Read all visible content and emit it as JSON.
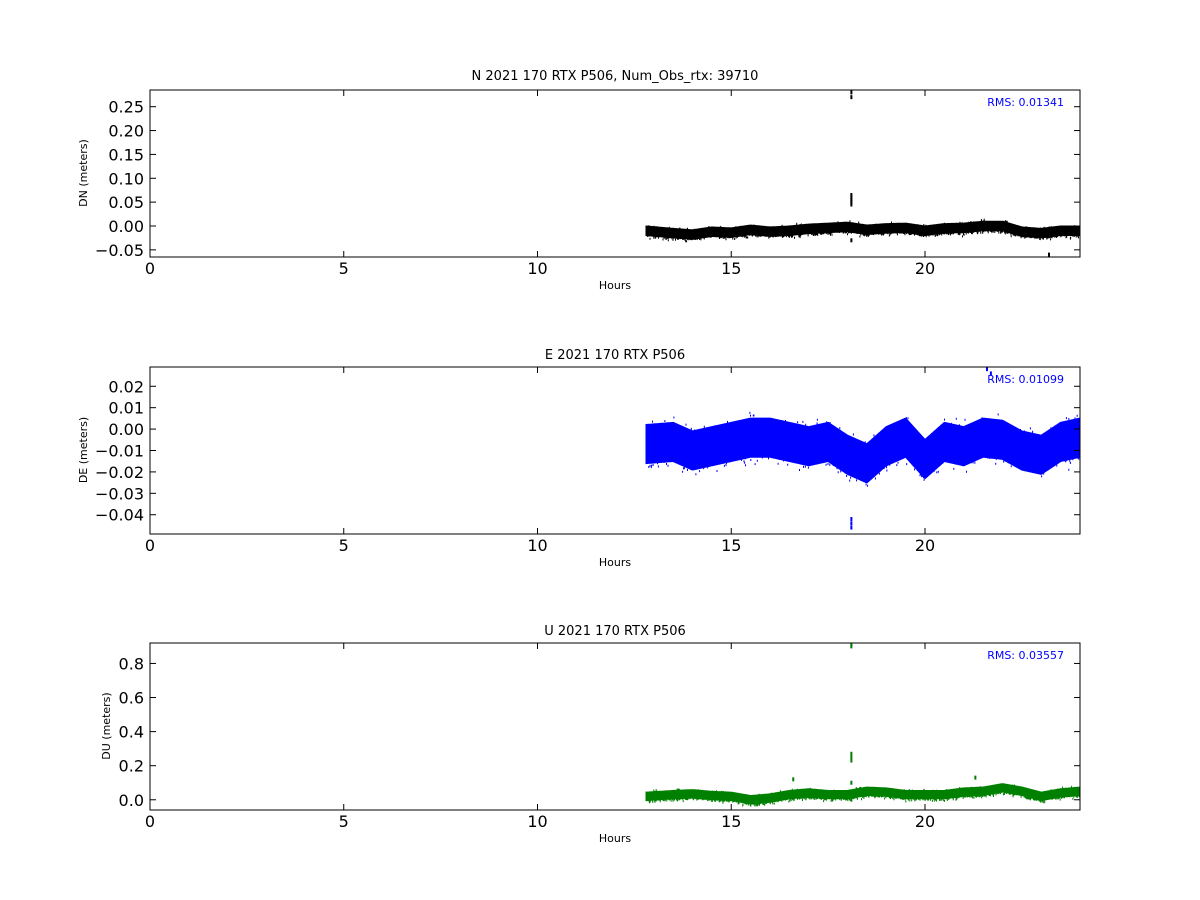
{
  "chart_data": [
    {
      "type": "scatter",
      "title": "N 2021 170 RTX  P506, Num_Obs_rtx: 39710",
      "xlabel": "Hours",
      "ylabel": "DN (meters)",
      "xlim": [
        0,
        24
      ],
      "ylim": [
        -0.065,
        0.285
      ],
      "xticks": [
        0,
        5,
        10,
        15,
        20
      ],
      "yticks": [
        -0.05,
        0.0,
        0.05,
        0.1,
        0.15,
        0.2,
        0.25
      ],
      "ytick_labels": [
        "−0.05",
        "0.00",
        "0.05",
        "0.10",
        "0.15",
        "0.20",
        "0.25"
      ],
      "grid": false,
      "color": "#000000",
      "rms_label": "RMS:  0.01341",
      "rms_color": "#0000ff",
      "x_start": 12.8,
      "x_end": 24,
      "trend": [
        [
          12.8,
          -0.01
        ],
        [
          13.5,
          -0.015
        ],
        [
          14.0,
          -0.018
        ],
        [
          14.5,
          -0.012
        ],
        [
          15.0,
          -0.014
        ],
        [
          15.5,
          -0.008
        ],
        [
          16.0,
          -0.012
        ],
        [
          16.5,
          -0.01
        ],
        [
          17.0,
          -0.006
        ],
        [
          17.5,
          -0.004
        ],
        [
          18.0,
          -0.002
        ],
        [
          18.5,
          -0.008
        ],
        [
          19.0,
          -0.005
        ],
        [
          19.5,
          -0.004
        ],
        [
          20.0,
          -0.01
        ],
        [
          20.5,
          -0.005
        ],
        [
          21.0,
          -0.004
        ],
        [
          21.5,
          0.0
        ],
        [
          22.0,
          0.0
        ],
        [
          22.5,
          -0.012
        ],
        [
          23.0,
          -0.015
        ],
        [
          23.5,
          -0.01
        ],
        [
          24.0,
          -0.01
        ]
      ],
      "noise": 0.01,
      "outliers": [
        [
          18.1,
          0.28
        ],
        [
          18.1,
          0.27
        ],
        [
          18.1,
          0.065
        ],
        [
          18.1,
          0.06
        ],
        [
          18.1,
          0.055
        ],
        [
          18.1,
          0.05
        ],
        [
          18.1,
          0.045
        ],
        [
          18.1,
          -0.03
        ],
        [
          23.2,
          -0.06
        ]
      ]
    },
    {
      "type": "scatter",
      "title": "E 2021 170 RTX  P506",
      "xlabel": "Hours",
      "ylabel": "DE (meters)",
      "xlim": [
        0,
        24
      ],
      "ylim": [
        -0.049,
        0.029
      ],
      "xticks": [
        0,
        5,
        10,
        15,
        20
      ],
      "yticks": [
        -0.04,
        -0.03,
        -0.02,
        -0.01,
        0.0,
        0.01,
        0.02
      ],
      "ytick_labels": [
        "−0.04",
        "−0.03",
        "−0.02",
        "−0.01",
        "0.00",
        "0.01",
        "0.02"
      ],
      "grid": false,
      "color": "#0000ff",
      "rms_label": "RMS:  0.01099",
      "rms_color": "#0000ff",
      "x_start": 12.8,
      "x_end": 24,
      "trend": [
        [
          12.8,
          -0.007
        ],
        [
          13.5,
          -0.006
        ],
        [
          14.0,
          -0.01
        ],
        [
          14.5,
          -0.008
        ],
        [
          15.0,
          -0.006
        ],
        [
          15.5,
          -0.004
        ],
        [
          16.0,
          -0.004
        ],
        [
          16.5,
          -0.006
        ],
        [
          17.0,
          -0.008
        ],
        [
          17.5,
          -0.006
        ],
        [
          18.0,
          -0.012
        ],
        [
          18.5,
          -0.016
        ],
        [
          19.0,
          -0.008
        ],
        [
          19.5,
          -0.004
        ],
        [
          20.0,
          -0.014
        ],
        [
          20.5,
          -0.006
        ],
        [
          21.0,
          -0.008
        ],
        [
          21.5,
          -0.004
        ],
        [
          22.0,
          -0.005
        ],
        [
          22.5,
          -0.01
        ],
        [
          23.0,
          -0.012
        ],
        [
          23.5,
          -0.006
        ],
        [
          24.0,
          -0.004
        ]
      ],
      "noise": 0.0085,
      "outliers": [
        [
          18.1,
          -0.042
        ],
        [
          18.1,
          -0.044
        ],
        [
          18.1,
          -0.046
        ],
        [
          21.6,
          0.028
        ],
        [
          21.7,
          0.026
        ]
      ]
    },
    {
      "type": "scatter",
      "title": "U 2021 170 RTX  P506",
      "xlabel": "Hours",
      "ylabel": "DU (meters)",
      "xlim": [
        0,
        24
      ],
      "ylim": [
        -0.06,
        0.92
      ],
      "xticks": [
        0,
        5,
        10,
        15,
        20
      ],
      "yticks": [
        0.0,
        0.2,
        0.4,
        0.6,
        0.8
      ],
      "ytick_labels": [
        "0.0",
        "0.2",
        "0.4",
        "0.6",
        "0.8"
      ],
      "grid": false,
      "color": "#008000",
      "rms_label": "RMS:  0.03557",
      "rms_color": "#0000ff",
      "x_start": 12.8,
      "x_end": 24,
      "trend": [
        [
          12.8,
          0.02
        ],
        [
          13.5,
          0.03
        ],
        [
          14.0,
          0.035
        ],
        [
          14.5,
          0.025
        ],
        [
          15.0,
          0.02
        ],
        [
          15.5,
          0.0
        ],
        [
          16.0,
          0.01
        ],
        [
          16.5,
          0.03
        ],
        [
          17.0,
          0.04
        ],
        [
          17.5,
          0.03
        ],
        [
          18.0,
          0.03
        ],
        [
          18.5,
          0.05
        ],
        [
          19.0,
          0.045
        ],
        [
          19.5,
          0.03
        ],
        [
          20.0,
          0.03
        ],
        [
          20.5,
          0.03
        ],
        [
          21.0,
          0.045
        ],
        [
          21.5,
          0.05
        ],
        [
          22.0,
          0.07
        ],
        [
          22.5,
          0.05
        ],
        [
          23.0,
          0.02
        ],
        [
          23.5,
          0.04
        ],
        [
          24.0,
          0.05
        ]
      ],
      "noise": 0.025,
      "outliers": [
        [
          18.1,
          0.91
        ],
        [
          18.1,
          0.9
        ],
        [
          18.1,
          0.27
        ],
        [
          18.1,
          0.25
        ],
        [
          18.1,
          0.23
        ],
        [
          18.1,
          0.1
        ],
        [
          16.6,
          0.12
        ],
        [
          21.3,
          0.13
        ]
      ]
    }
  ]
}
